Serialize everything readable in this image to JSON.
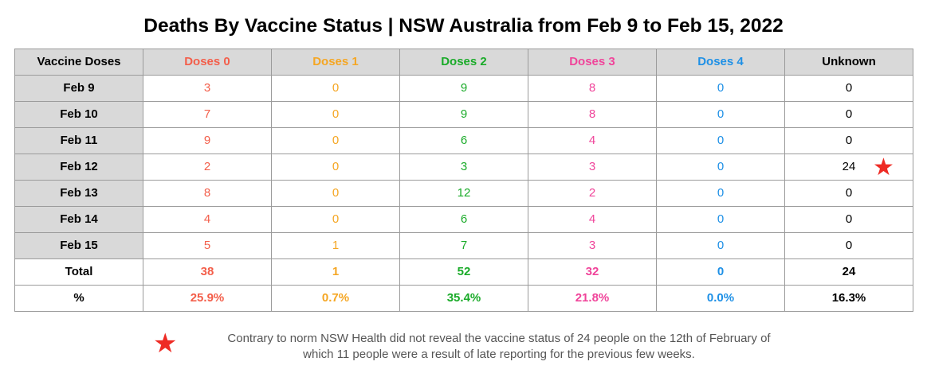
{
  "title": "Deaths By Vaccine Status | NSW Australia from Feb 9 to Feb 15, 2022",
  "colors": {
    "dose0": "#f35e4a",
    "dose1": "#f5a623",
    "dose2": "#1aab29",
    "dose3": "#f0449a",
    "dose4": "#1e90e6",
    "unknown": "#000000",
    "star": "#ee2b24",
    "header_bg": "#d9d9d9"
  },
  "chart_data": {
    "type": "table",
    "title": "Deaths By Vaccine Status | NSW Australia from Feb 9 to Feb 15, 2022",
    "header_label": "Vaccine Doses",
    "columns": [
      "Doses 0",
      "Doses 1",
      "Doses 2",
      "Doses 3",
      "Doses 4",
      "Unknown"
    ],
    "rows": [
      {
        "label": "Feb 9",
        "values": [
          "3",
          "0",
          "9",
          "8",
          "0",
          "0"
        ]
      },
      {
        "label": "Feb 10",
        "values": [
          "7",
          "0",
          "9",
          "8",
          "0",
          "0"
        ]
      },
      {
        "label": "Feb 11",
        "values": [
          "9",
          "0",
          "6",
          "4",
          "0",
          "0"
        ]
      },
      {
        "label": "Feb 12",
        "values": [
          "2",
          "0",
          "3",
          "3",
          "0",
          "24"
        ],
        "flagged": true
      },
      {
        "label": "Feb 13",
        "values": [
          "8",
          "0",
          "12",
          "2",
          "0",
          "0"
        ]
      },
      {
        "label": "Feb 14",
        "values": [
          "4",
          "0",
          "6",
          "4",
          "0",
          "0"
        ]
      },
      {
        "label": "Feb 15",
        "values": [
          "5",
          "1",
          "7",
          "3",
          "0",
          "0"
        ]
      }
    ],
    "total": {
      "label": "Total",
      "values": [
        "38",
        "1",
        "52",
        "32",
        "0",
        "24"
      ]
    },
    "percent": {
      "label": "%",
      "values": [
        "25.9%",
        "0.7%",
        "35.4%",
        "21.8%",
        "0.0%",
        "16.3%"
      ]
    }
  },
  "footnote": {
    "marker": "★",
    "line1": "Contrary to norm NSW Health did not reveal the vaccine status of 24 people on the 12th of February of",
    "line2": "which 11 people were a result of late reporting for the previous few weeks."
  }
}
